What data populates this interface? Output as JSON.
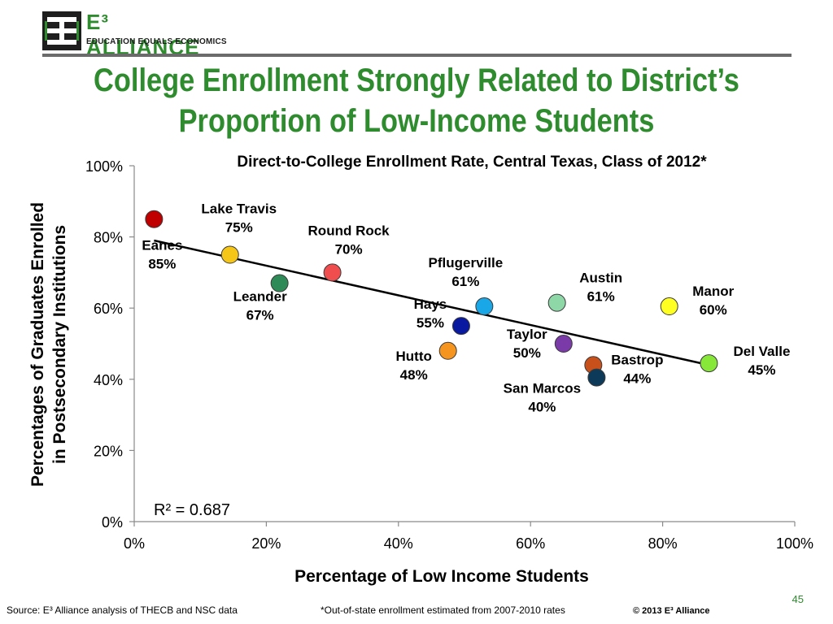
{
  "header": {
    "logo_brand": "E³ ALLIANCE",
    "logo_tagline": "EDUCATION EQUALS ECONOMICS",
    "title_line1": "College Enrollment Strongly Related to District’s",
    "title_line2": "Proportion of Low-Income Students"
  },
  "chart_data": {
    "type": "scatter",
    "title": "Direct-to-College Enrollment Rate, Central Texas, Class of 2012*",
    "xlabel": "Percentage of Low Income Students",
    "ylabel_line1": "Percentages of Graduates Enrolled",
    "ylabel_line2": "in Postsecondary Institutions",
    "xlim": [
      0,
      100
    ],
    "ylim": [
      0,
      100
    ],
    "x_ticks": [
      "0%",
      "20%",
      "40%",
      "60%",
      "80%",
      "100%"
    ],
    "y_ticks": [
      "0%",
      "20%",
      "40%",
      "60%",
      "80%",
      "100%"
    ],
    "grid": false,
    "r_squared_label": "R² = 0.687",
    "trendline": {
      "x": [
        3,
        87
      ],
      "y": [
        79,
        44
      ]
    },
    "points": [
      {
        "name": "Eanes",
        "value_label": "85%",
        "x": 3,
        "y": 85,
        "color": "#c00000"
      },
      {
        "name": "Lake Travis",
        "value_label": "75%",
        "x": 14.5,
        "y": 75,
        "color": "#f5c518"
      },
      {
        "name": "Leander",
        "value_label": "67%",
        "x": 22,
        "y": 67,
        "color": "#2e8b57"
      },
      {
        "name": "Round Rock",
        "value_label": "70%",
        "x": 30,
        "y": 70,
        "color": "#f04e4e"
      },
      {
        "name": "Pflugerville",
        "value_label": "61%",
        "x": 53,
        "y": 60.5,
        "color": "#1aa7e8"
      },
      {
        "name": "Austin",
        "value_label": "61%",
        "x": 64,
        "y": 61.5,
        "color": "#8ed8a8"
      },
      {
        "name": "Manor",
        "value_label": "60%",
        "x": 81,
        "y": 60.5,
        "color": "#ffff22"
      },
      {
        "name": "Hays",
        "value_label": "55%",
        "x": 49.5,
        "y": 55,
        "color": "#0a1aa0"
      },
      {
        "name": "Taylor",
        "value_label": "50%",
        "x": 65,
        "y": 50,
        "color": "#7a3aa8"
      },
      {
        "name": "Hutto",
        "value_label": "48%",
        "x": 47.5,
        "y": 48,
        "color": "#f5941e"
      },
      {
        "name": "Bastrop",
        "value_label": "44%",
        "x": 69.5,
        "y": 44,
        "color": "#c8501a"
      },
      {
        "name": "San Marcos",
        "value_label": "40%",
        "x": 70,
        "y": 40.5,
        "color": "#0e3a5a"
      },
      {
        "name": "Del Valle",
        "value_label": "45%",
        "x": 87,
        "y": 44.5,
        "color": "#88e83a"
      }
    ]
  },
  "footer": {
    "source": "Source: E³ Alliance analysis of THECB and NSC data",
    "note": "*Out-of-state enrollment estimated from 2007-2010 rates",
    "copyright": "© 2013 E³ Alliance",
    "page_number": "45"
  }
}
